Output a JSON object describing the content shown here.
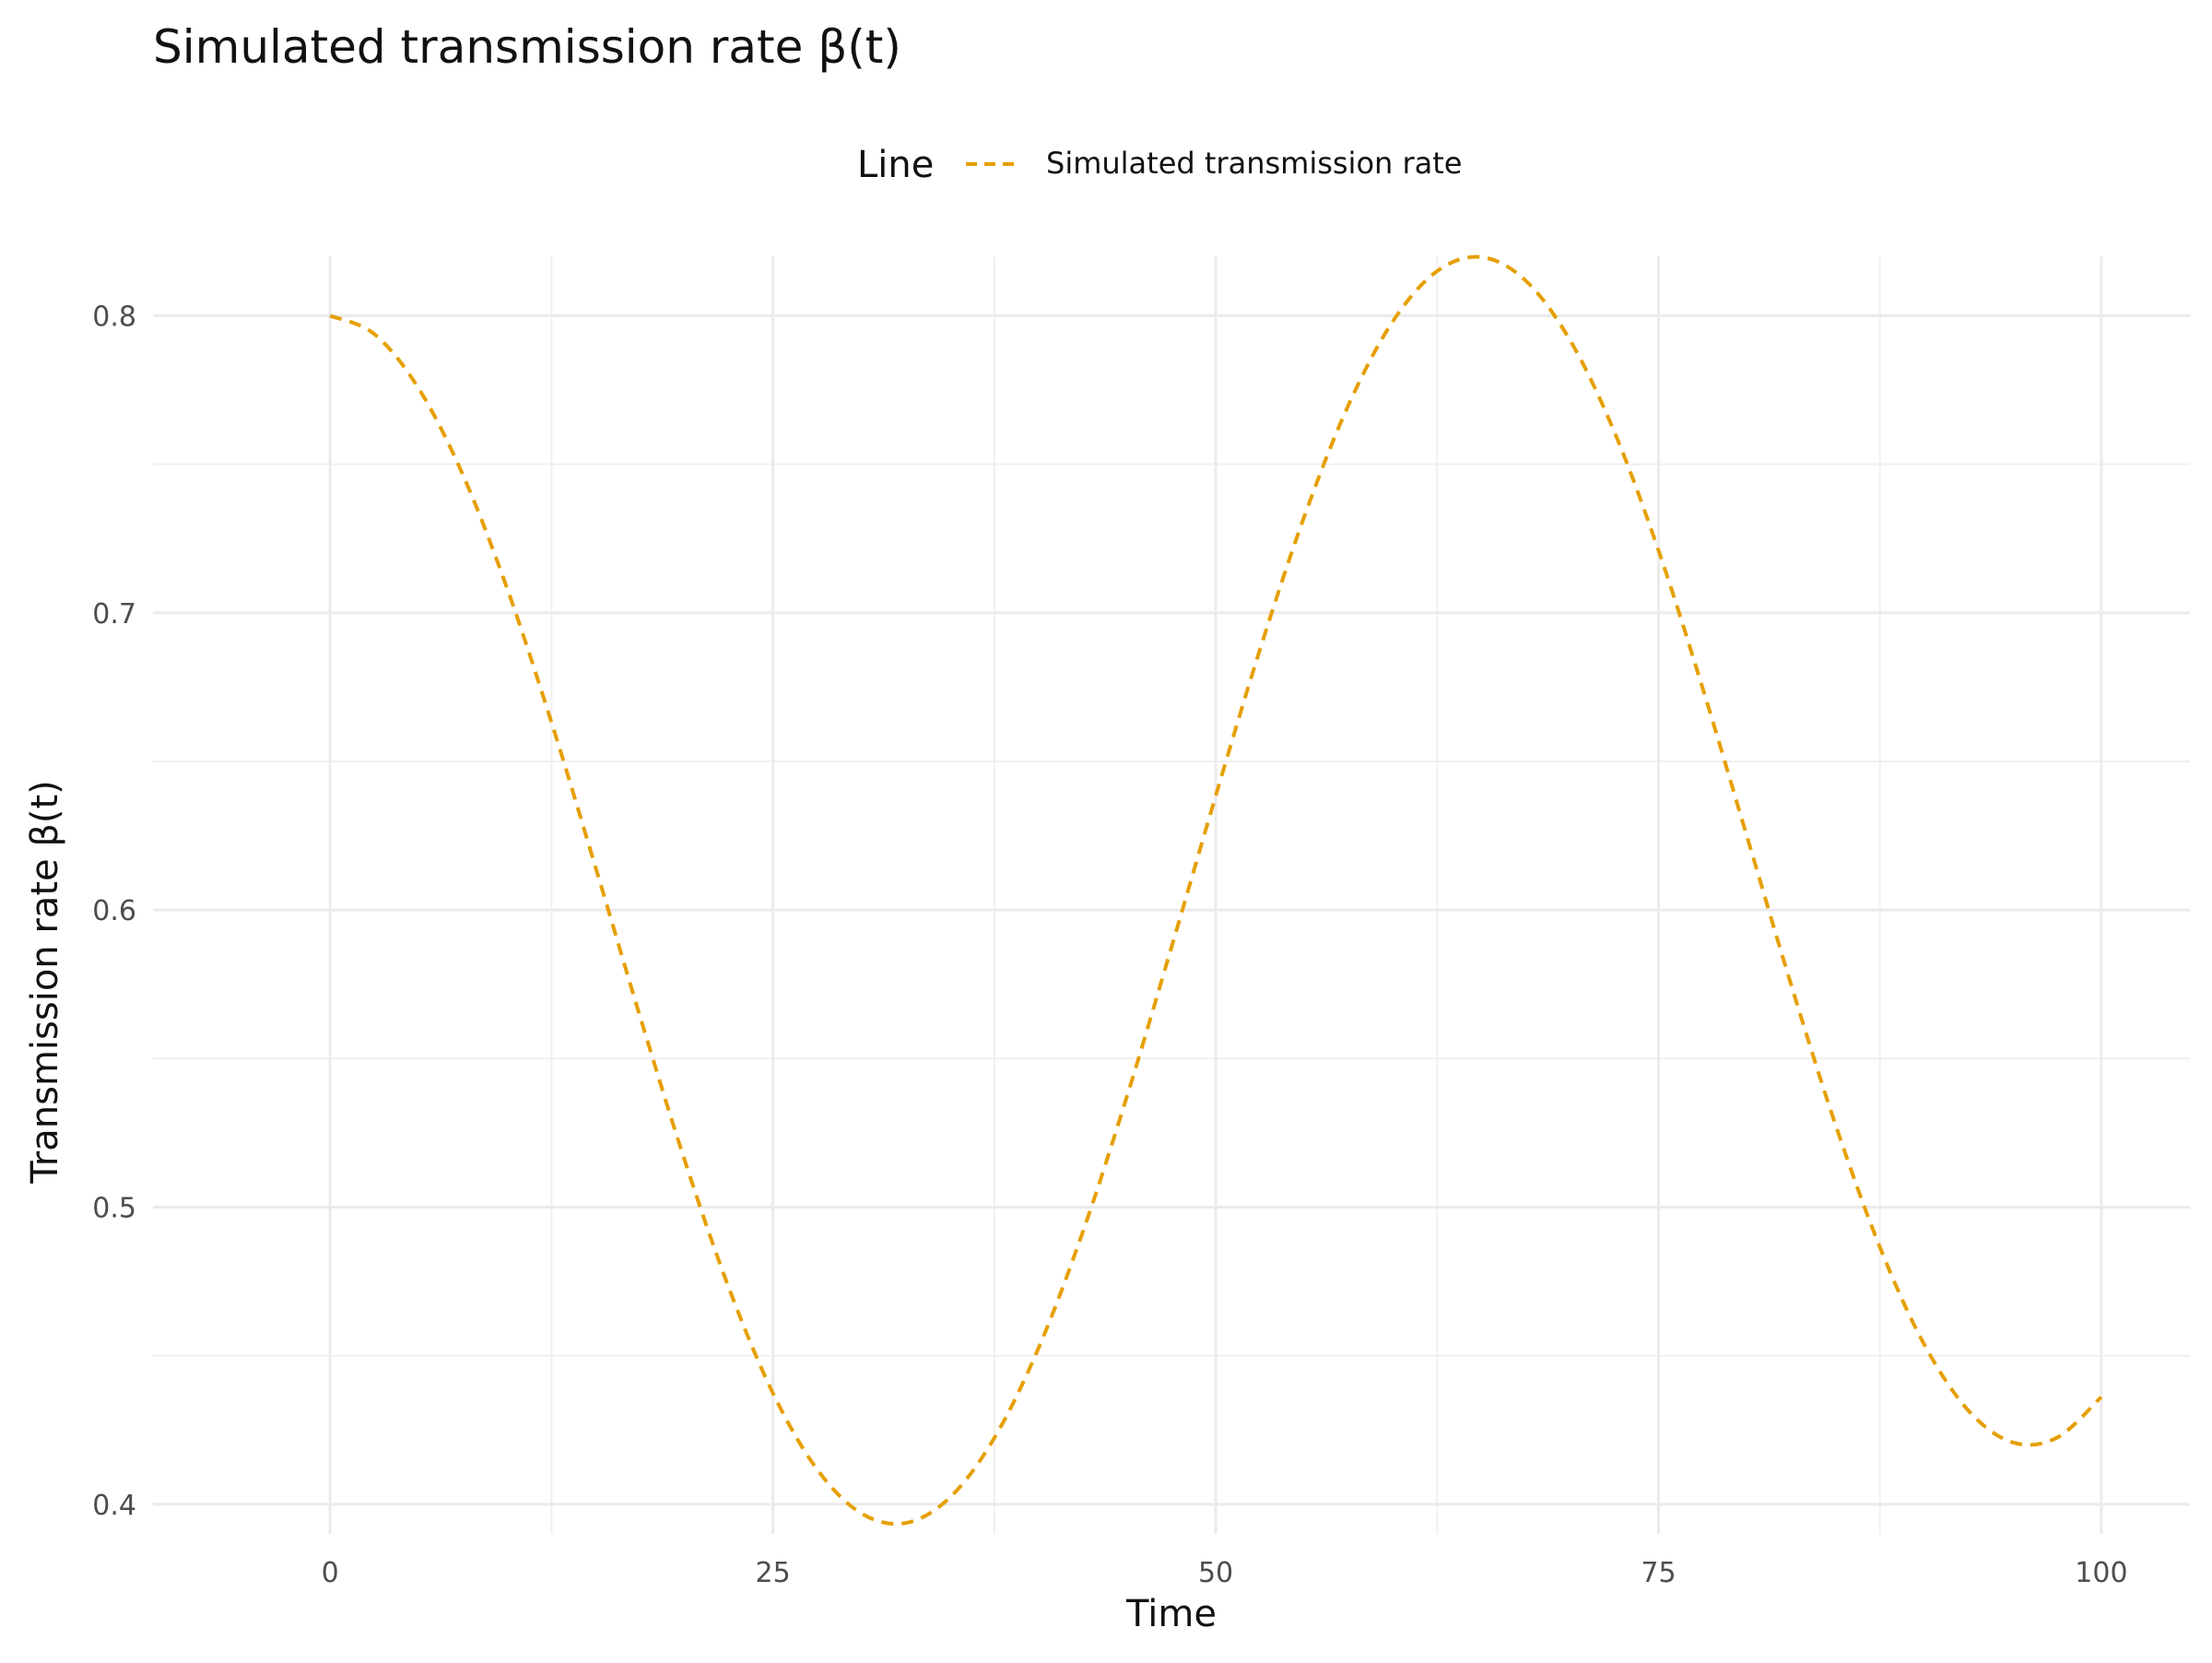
{
  "chart_data": {
    "type": "line",
    "title": "Simulated transmission rate β(t)",
    "xlabel": "Time",
    "ylabel": "Transmission rate β(t)",
    "xlim": [
      -10,
      105
    ],
    "ylim": [
      0.39,
      0.82
    ],
    "x_ticks": [
      0,
      25,
      50,
      75,
      100
    ],
    "x_tick_labels": [
      "0",
      "25",
      "50",
      "75",
      "100"
    ],
    "y_ticks": [
      0.4,
      0.5,
      0.6,
      0.7,
      0.8
    ],
    "y_tick_labels": [
      "0.4",
      "0.5",
      "0.6",
      "0.7",
      "0.8"
    ],
    "grid": true,
    "legend": {
      "title": "Line",
      "position": "top"
    },
    "series": [
      {
        "name": "Simulated transmission rate",
        "color": "#E69F00",
        "linestyle": "dashed",
        "x": [
          0,
          2.5,
          5,
          7.5,
          10,
          12.5,
          15,
          17.5,
          20,
          22.5,
          25,
          27.5,
          30,
          32.5,
          35,
          37.5,
          40,
          42.5,
          45,
          47.5,
          50,
          52.5,
          55,
          57.5,
          60,
          62.5,
          65,
          67.5,
          70,
          72.5,
          75,
          77.5,
          80,
          82.5,
          85,
          87.5,
          90,
          92.5,
          95,
          97.5,
          100
        ],
        "y": [
          0.8,
          0.7938,
          0.7755,
          0.7464,
          0.7081,
          0.6631,
          0.6141,
          0.5641,
          0.5161,
          0.473,
          0.4374,
          0.4117,
          0.3969,
          0.3937,
          0.4023,
          0.4223,
          0.4526,
          0.4917,
          0.5375,
          0.5874,
          0.6384,
          0.6877,
          0.7324,
          0.77,
          0.7981,
          0.815,
          0.8197,
          0.8118,
          0.7918,
          0.761,
          0.721,
          0.6745,
          0.6246,
          0.5746,
          0.5276,
          0.4865,
          0.4538,
          0.4315,
          0.4208,
          0.4224,
          0.4361
        ]
      }
    ]
  }
}
